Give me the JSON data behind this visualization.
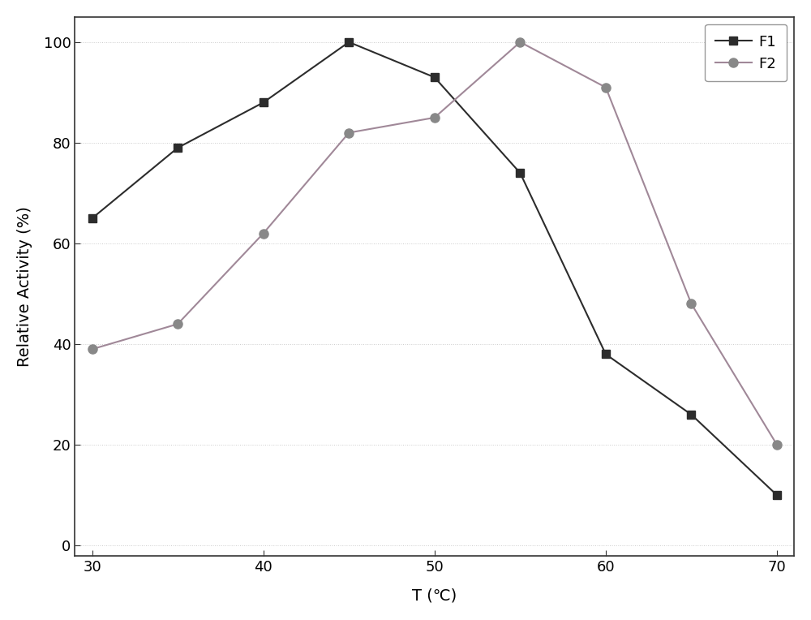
{
  "F1_x": [
    30,
    35,
    40,
    45,
    50,
    55,
    60,
    65,
    70
  ],
  "F1_y": [
    65,
    79,
    88,
    100,
    93,
    74,
    38,
    26,
    10
  ],
  "F2_x": [
    30,
    35,
    40,
    45,
    50,
    55,
    60,
    65,
    70
  ],
  "F2_y": [
    39,
    44,
    62,
    82,
    85,
    100,
    91,
    48,
    20
  ],
  "F1_color": "#2c2c2c",
  "F2_color": "#888888",
  "F2_line_color": "#a08898",
  "xlabel": "T (℃)",
  "ylabel": "Relative Activity (%)",
  "xlim": [
    29,
    71
  ],
  "ylim": [
    -2,
    105
  ],
  "xticks": [
    30,
    40,
    50,
    60,
    70
  ],
  "yticks": [
    0,
    20,
    40,
    60,
    80,
    100
  ],
  "legend_labels": [
    "F1",
    "F2"
  ],
  "grid_color": "#cccccc",
  "background_color": "#ffffff",
  "label_fontsize": 14,
  "tick_fontsize": 13,
  "legend_fontsize": 13,
  "marker_size_F1": 7,
  "marker_size_F2": 8,
  "linewidth": 1.5
}
